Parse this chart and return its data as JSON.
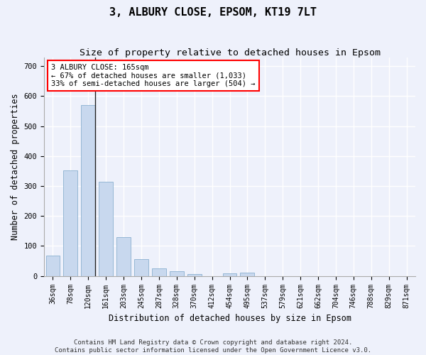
{
  "title": "3, ALBURY CLOSE, EPSOM, KT19 7LT",
  "subtitle": "Size of property relative to detached houses in Epsom",
  "xlabel": "Distribution of detached houses by size in Epsom",
  "ylabel": "Number of detached properties",
  "bar_color": "#c8d8ee",
  "bar_edge_color": "#8ab0d0",
  "marker_color": "#222222",
  "categories": [
    "36sqm",
    "78sqm",
    "120sqm",
    "161sqm",
    "203sqm",
    "245sqm",
    "287sqm",
    "328sqm",
    "370sqm",
    "412sqm",
    "454sqm",
    "495sqm",
    "537sqm",
    "579sqm",
    "621sqm",
    "662sqm",
    "704sqm",
    "746sqm",
    "788sqm",
    "829sqm",
    "871sqm"
  ],
  "values": [
    68,
    352,
    571,
    314,
    130,
    57,
    25,
    15,
    7,
    0,
    9,
    10,
    0,
    0,
    0,
    0,
    0,
    0,
    0,
    0,
    0
  ],
  "ylim": [
    0,
    730
  ],
  "yticks": [
    0,
    100,
    200,
    300,
    400,
    500,
    600,
    700
  ],
  "property_label": "3 ALBURY CLOSE: 165sqm",
  "annotation_line1": "← 67% of detached houses are smaller (1,033)",
  "annotation_line2": "33% of semi-detached houses are larger (504) →",
  "footer1": "Contains HM Land Registry data © Crown copyright and database right 2024.",
  "footer2": "Contains public sector information licensed under the Open Government Licence v3.0.",
  "bg_color": "#eef1fb",
  "plot_bg_color": "#eef1fb",
  "grid_color": "#ffffff",
  "title_fontsize": 11,
  "subtitle_fontsize": 9.5,
  "axis_fontsize": 8.5,
  "tick_fontsize": 7.5,
  "footer_fontsize": 6.5
}
